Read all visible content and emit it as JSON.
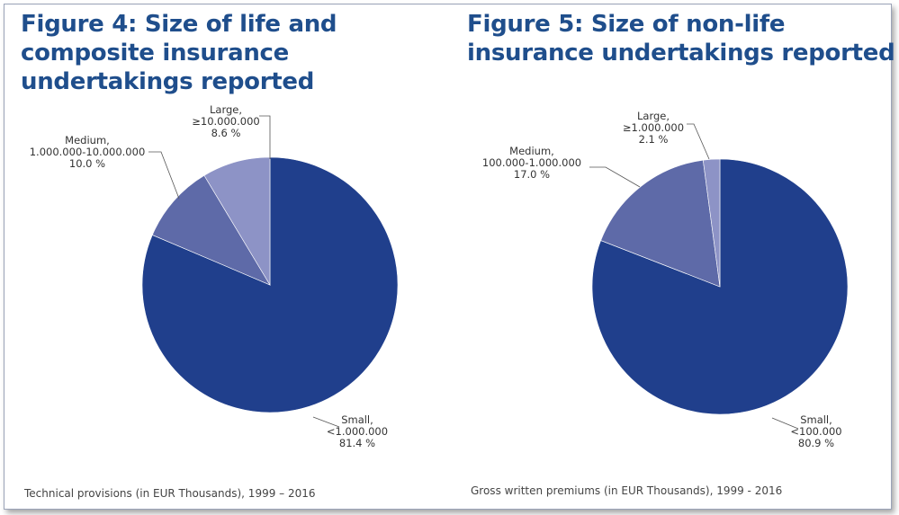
{
  "chart_data": [
    {
      "type": "pie",
      "title": "Figure 4: Size of life and composite insurance undertakings reported",
      "caption": "Technical provisions (in EUR Thousands), 1999 – 2016",
      "slices": [
        {
          "label_lines": [
            "Small,",
            "<1.000.000",
            "81.4 %"
          ],
          "value": 81.4,
          "color": "#203f8c"
        },
        {
          "label_lines": [
            "Medium,",
            "1.000.000-10.000.000",
            "10.0 %"
          ],
          "value": 10.0,
          "color": "#5e6aa8"
        },
        {
          "label_lines": [
            "Large,",
            "≥10.000.000",
            "8.6 %"
          ],
          "value": 8.6,
          "color": "#8d93c6"
        }
      ]
    },
    {
      "type": "pie",
      "title": "Figure 5: Size of non-life insurance undertakings reported",
      "caption": "Gross written premiums (in EUR Thousands), 1999 - 2016",
      "slices": [
        {
          "label_lines": [
            "Small,",
            "<100.000",
            "80.9 %"
          ],
          "value": 80.9,
          "color": "#203f8c"
        },
        {
          "label_lines": [
            "Medium,",
            "100.000-1.000.000",
            "17.0 %"
          ],
          "value": 17.0,
          "color": "#5e6aa8"
        },
        {
          "label_lines": [
            "Large,",
            "≥1.000.000",
            "2.1 %"
          ],
          "value": 2.1,
          "color": "#8d93c6"
        }
      ]
    }
  ]
}
